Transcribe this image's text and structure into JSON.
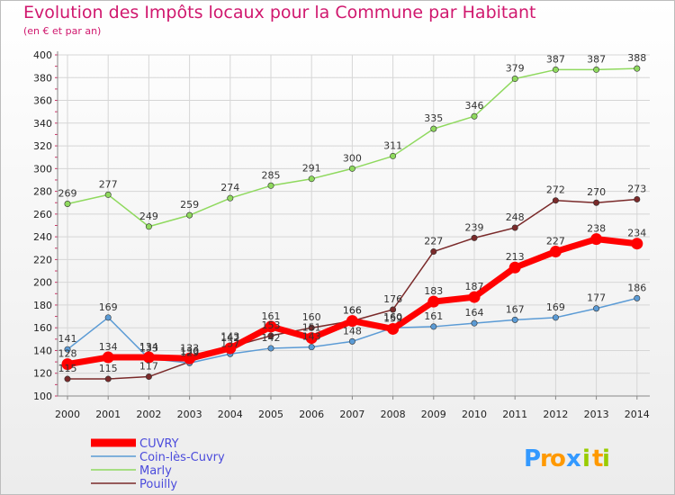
{
  "chart_data": {
    "type": "line",
    "title": "Evolution des Impôts locaux pour la Commune par Habitant",
    "subtitle": "(en € et par an)",
    "x": [
      "2000",
      "2001",
      "2002",
      "2003",
      "2004",
      "2005",
      "2006",
      "2007",
      "2008",
      "2009",
      "2010",
      "2011",
      "2012",
      "2013",
      "2014"
    ],
    "ylim": [
      100,
      400
    ],
    "yticks": [
      100,
      120,
      140,
      160,
      180,
      200,
      220,
      240,
      260,
      280,
      300,
      320,
      340,
      360,
      380,
      400
    ],
    "grid": true,
    "legend_position": "bottom-left",
    "series": [
      {
        "name": "CUVRY",
        "color": "#ff0000",
        "values": [
          128,
          134,
          134,
          133,
          142,
          161,
          151,
          166,
          159,
          183,
          187,
          213,
          227,
          238,
          234
        ]
      },
      {
        "name": "Coin-lès-Cuvry",
        "color": "#5b9bd5",
        "values": [
          141,
          169,
          133,
          129,
          137,
          142,
          143,
          148,
          160,
          161,
          164,
          167,
          169,
          177,
          186
        ]
      },
      {
        "name": "Marly",
        "color": "#8fd95e",
        "values": [
          269,
          277,
          249,
          259,
          274,
          285,
          291,
          300,
          311,
          335,
          346,
          379,
          387,
          387,
          388
        ]
      },
      {
        "name": "Pouilly",
        "color": "#7a2a2a",
        "values": [
          115,
          115,
          117,
          130,
          143,
          153,
          160,
          166,
          176,
          227,
          239,
          248,
          272,
          270,
          273
        ]
      }
    ]
  },
  "logo": {
    "letters": [
      "P",
      "r",
      "o",
      "x",
      "i",
      "t",
      "i"
    ],
    "colors": [
      "#3399ff",
      "#ff9900",
      "#ff9900",
      "#3399ff",
      "#99cc00",
      "#ff9900",
      "#99cc00"
    ]
  }
}
